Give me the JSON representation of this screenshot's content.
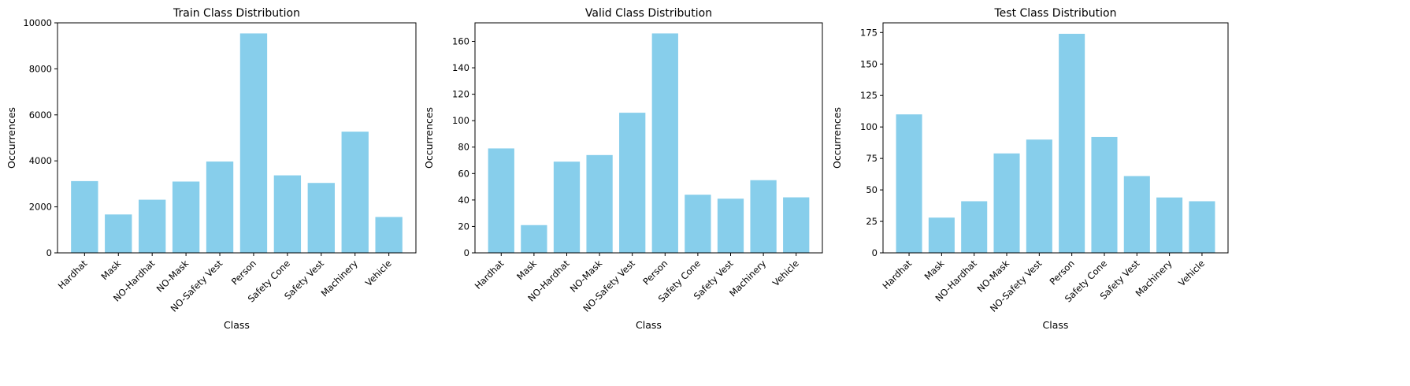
{
  "chart_data": [
    {
      "type": "bar",
      "title": "Train Class Distribution",
      "xlabel": "Class",
      "ylabel": "Occurrences",
      "categories": [
        "Hardhat",
        "Mask",
        "NO-Hardhat",
        "NO-Mask",
        "NO-Safety Vest",
        "Person",
        "Safety Cone",
        "Safety Vest",
        "Machinery",
        "Vehicle"
      ],
      "values": [
        3120,
        1670,
        2310,
        3100,
        3970,
        9540,
        3370,
        3040,
        5270,
        1560
      ],
      "ylim": [
        0,
        10000
      ],
      "yticks": [
        0,
        2000,
        4000,
        6000,
        8000,
        10000
      ],
      "bar_color": "#87ceeb",
      "grid": false,
      "legend": "none"
    },
    {
      "type": "bar",
      "title": "Valid Class Distribution",
      "xlabel": "Class",
      "ylabel": "Occurrences",
      "categories": [
        "Hardhat",
        "Mask",
        "NO-Hardhat",
        "NO-Mask",
        "NO-Safety Vest",
        "Person",
        "Safety Cone",
        "Safety Vest",
        "Machinery",
        "Vehicle"
      ],
      "values": [
        79,
        21,
        69,
        74,
        106,
        166,
        44,
        41,
        55,
        42
      ],
      "ylim": [
        0,
        174
      ],
      "yticks": [
        0,
        20,
        40,
        60,
        80,
        100,
        120,
        140,
        160
      ],
      "bar_color": "#87ceeb",
      "grid": false,
      "legend": "none"
    },
    {
      "type": "bar",
      "title": "Test Class Distribution",
      "xlabel": "Class",
      "ylabel": "Occurrences",
      "categories": [
        "Hardhat",
        "Mask",
        "NO-Hardhat",
        "NO-Mask",
        "NO-Safety Vest",
        "Person",
        "Safety Cone",
        "Safety Vest",
        "Machinery",
        "Vehicle"
      ],
      "values": [
        110,
        28,
        41,
        79,
        90,
        174,
        92,
        61,
        44,
        41
      ],
      "ylim": [
        0,
        182.7
      ],
      "yticks": [
        0,
        25,
        50,
        75,
        100,
        125,
        150,
        175
      ],
      "bar_color": "#87ceeb",
      "grid": false,
      "legend": "none"
    }
  ]
}
